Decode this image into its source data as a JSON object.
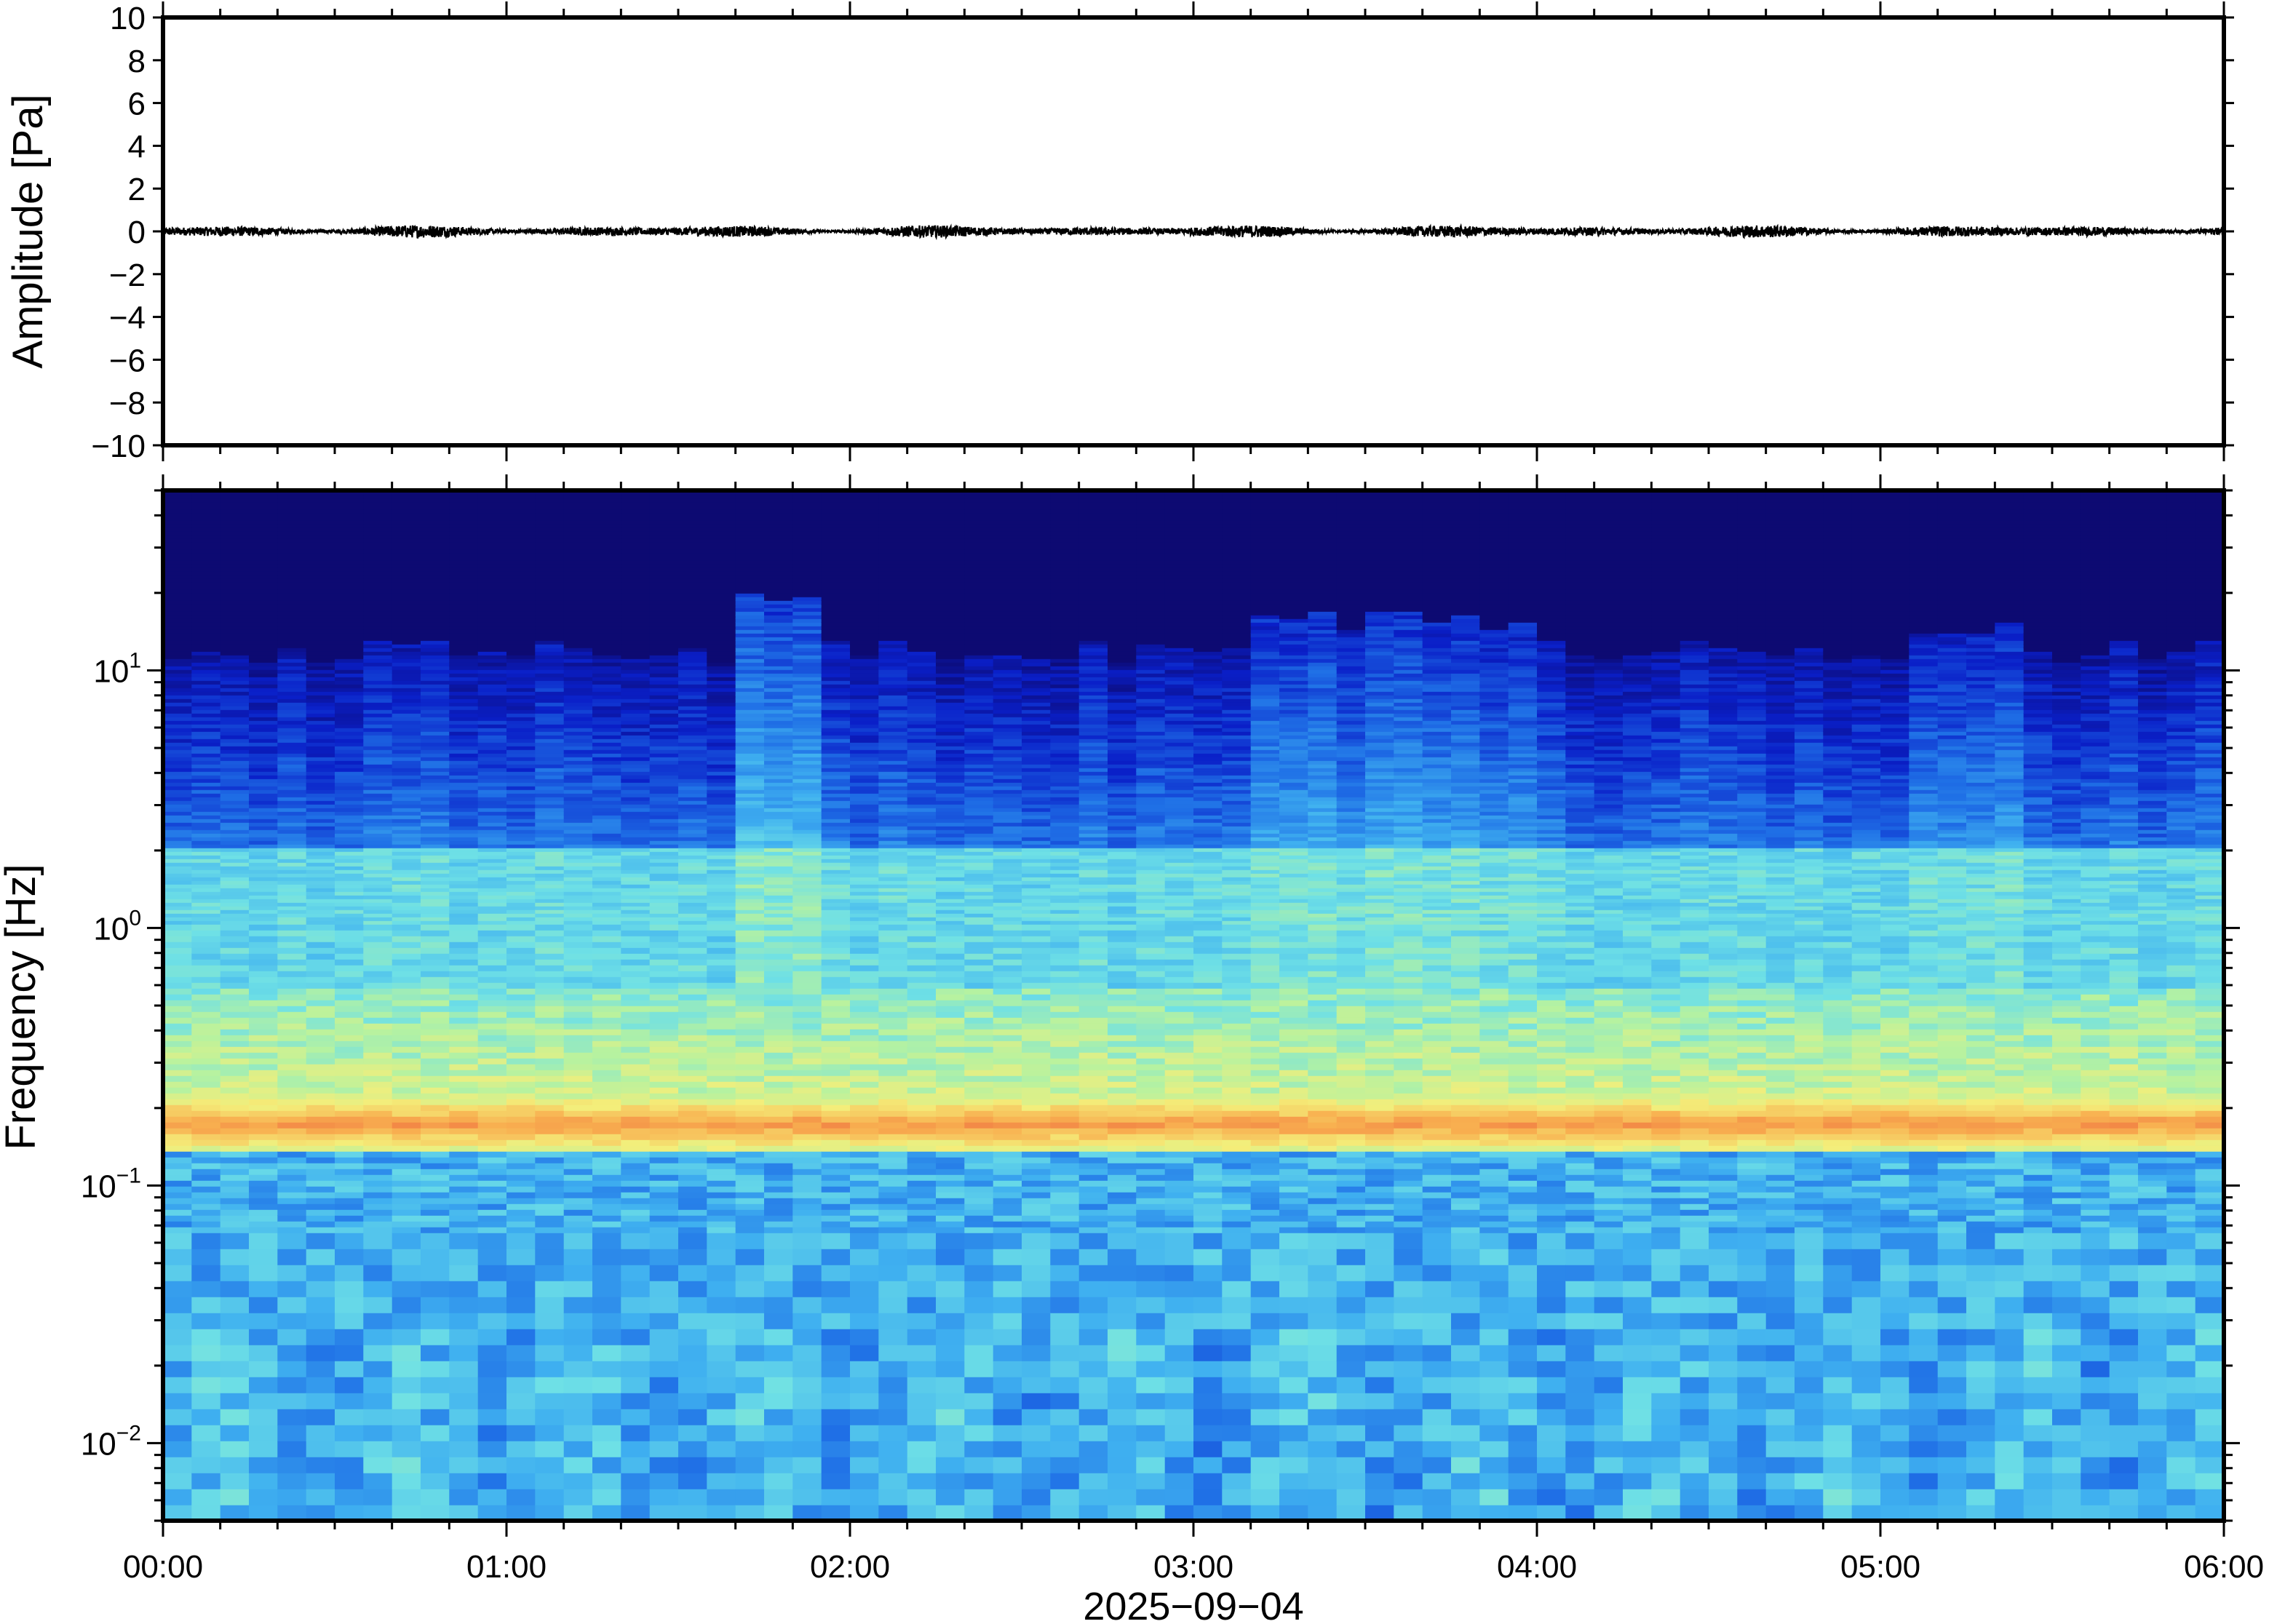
{
  "chart_data": [
    {
      "type": "line",
      "title": "",
      "xlabel": "",
      "ylabel": "Amplitude [Pa]",
      "ylim": [
        -10,
        10
      ],
      "y_ticks": [
        {
          "value": 10,
          "label": "10"
        },
        {
          "value": 8,
          "label": "8"
        },
        {
          "value": 6,
          "label": "6"
        },
        {
          "value": 4,
          "label": "4"
        },
        {
          "value": 2,
          "label": "2"
        },
        {
          "value": 0,
          "label": "0"
        },
        {
          "value": -2,
          "label": "−2"
        },
        {
          "value": -4,
          "label": "−4"
        },
        {
          "value": -6,
          "label": "−6"
        },
        {
          "value": -8,
          "label": "−8"
        },
        {
          "value": -10,
          "label": "−10"
        }
      ],
      "xlim_hours": [
        0,
        6
      ],
      "series": [
        {
          "values_description_free": true,
          "amplitude_range": [
            -0.3,
            0.3
          ],
          "mean": 0
        }
      ],
      "grid": false,
      "line_color": "#000000"
    },
    {
      "type": "heatmap",
      "title": "",
      "ylabel": "Frequency [Hz]",
      "y_scale": "log",
      "ylim_hz": [
        0.005,
        50
      ],
      "y_ticks": [
        {
          "value": 10,
          "base": "10",
          "exp": "1"
        },
        {
          "value": 1,
          "base": "10",
          "exp": "0"
        },
        {
          "value": 0.1,
          "base": "10",
          "exp": "−1"
        },
        {
          "value": 0.01,
          "base": "10",
          "exp": "−2"
        }
      ],
      "x_ticks": [
        "00:00",
        "01:00",
        "02:00",
        "03:00",
        "04:00",
        "05:00",
        "06:00"
      ],
      "xlabel": "2025−09−04",
      "xlim_hours": [
        0,
        6
      ],
      "colormap": [
        "#0d0a72",
        "#0a1fc8",
        "#1f6fe6",
        "#3fb0f0",
        "#6ee0e6",
        "#b6f2a0",
        "#f4ee7a",
        "#f8b050",
        "#f07040"
      ],
      "peak_band_hz": [
        0.13,
        0.22
      ],
      "grid": false
    }
  ]
}
